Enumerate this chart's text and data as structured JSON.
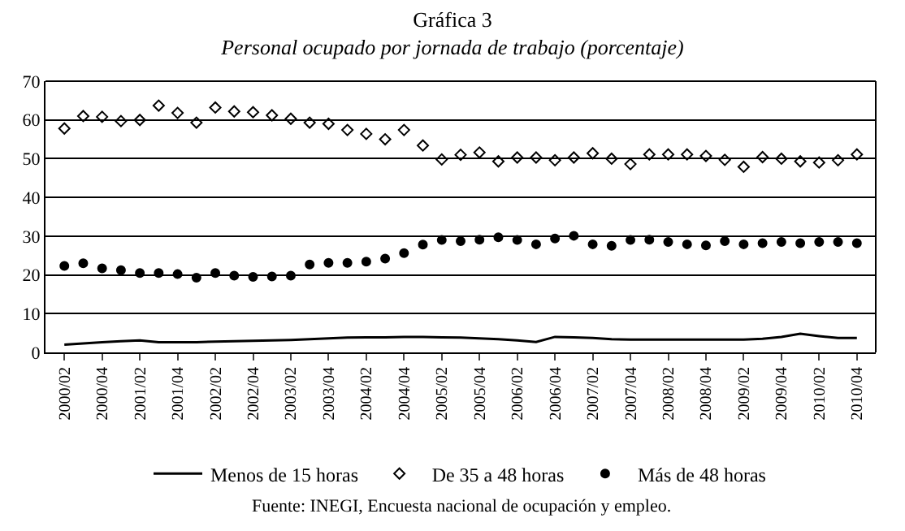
{
  "chart_data": {
    "type": "line",
    "title": "Gráfica 3",
    "subtitle": "Personal ocupado por jornada de trabajo (porcentaje)",
    "categories": [
      "2000/02",
      null,
      "2000/04",
      null,
      "2001/02",
      null,
      "2001/04",
      null,
      "2002/02",
      null,
      "2002/04",
      null,
      "2003/02",
      null,
      "2003/04",
      null,
      "2004/02",
      null,
      "2004/04",
      null,
      "2005/02",
      null,
      "2005/04",
      null,
      "2006/02",
      null,
      "2006/04",
      null,
      "2007/02",
      null,
      "2007/04",
      null,
      "2008/02",
      null,
      "2008/04",
      null,
      "2009/02",
      null,
      "2009/04",
      null,
      "2010/02",
      null,
      "2010/04"
    ],
    "ylim": [
      0,
      70
    ],
    "yticks": [
      0,
      10,
      20,
      30,
      40,
      50,
      60,
      70
    ],
    "grid": "y",
    "legend": "bottom",
    "series": [
      {
        "name": "Menos de 15 horas",
        "marker": "none",
        "line_style": "solid",
        "color": "#000000",
        "values": [
          2.0,
          2.3,
          2.6,
          2.9,
          3.1,
          2.6,
          2.6,
          2.6,
          2.8,
          2.9,
          3.0,
          3.1,
          3.2,
          3.4,
          3.6,
          3.8,
          3.9,
          3.9,
          4.0,
          4.0,
          3.9,
          3.8,
          3.6,
          3.4,
          3.1,
          2.7,
          4.0,
          3.9,
          3.7,
          3.4,
          3.3,
          3.3,
          3.3,
          3.3,
          3.3,
          3.3,
          3.3,
          3.5,
          4.0,
          4.8,
          4.2,
          3.7,
          3.7
        ]
      },
      {
        "name": "De 35 a 48 horas",
        "type": "scatter",
        "marker": "diamond",
        "color": "#000000",
        "values": [
          57.8,
          61.0,
          60.8,
          59.7,
          60.0,
          63.7,
          61.8,
          59.3,
          63.2,
          62.2,
          62.0,
          61.2,
          60.3,
          59.3,
          59.0,
          57.4,
          56.4,
          55.0,
          57.4,
          53.4,
          49.8,
          51.0,
          51.6,
          49.3,
          50.3,
          50.3,
          49.6,
          50.3,
          51.4,
          50.0,
          48.6,
          51.1,
          51.1,
          51.1,
          50.7,
          49.7,
          47.9,
          50.4,
          50.0,
          49.3,
          49.0,
          49.6,
          51.1
        ]
      },
      {
        "name": "Más de 48 horas",
        "type": "scatter",
        "marker": "circle",
        "color": "#000000",
        "values": [
          22.3,
          23.0,
          21.7,
          21.2,
          20.5,
          20.5,
          20.2,
          19.3,
          20.5,
          19.8,
          19.5,
          19.6,
          19.8,
          22.7,
          23.1,
          23.1,
          23.4,
          24.2,
          25.6,
          27.8,
          29.0,
          28.7,
          29.1,
          29.7,
          29.0,
          27.9,
          29.4,
          30.1,
          27.9,
          27.5,
          29.0,
          29.1,
          28.5,
          27.9,
          27.6,
          28.7,
          27.9,
          28.2,
          28.5,
          28.2,
          28.5,
          28.5,
          28.2
        ]
      }
    ],
    "annotations": [
      "Fuente: INEGI, Encuesta nacional de ocupación y empleo."
    ]
  }
}
